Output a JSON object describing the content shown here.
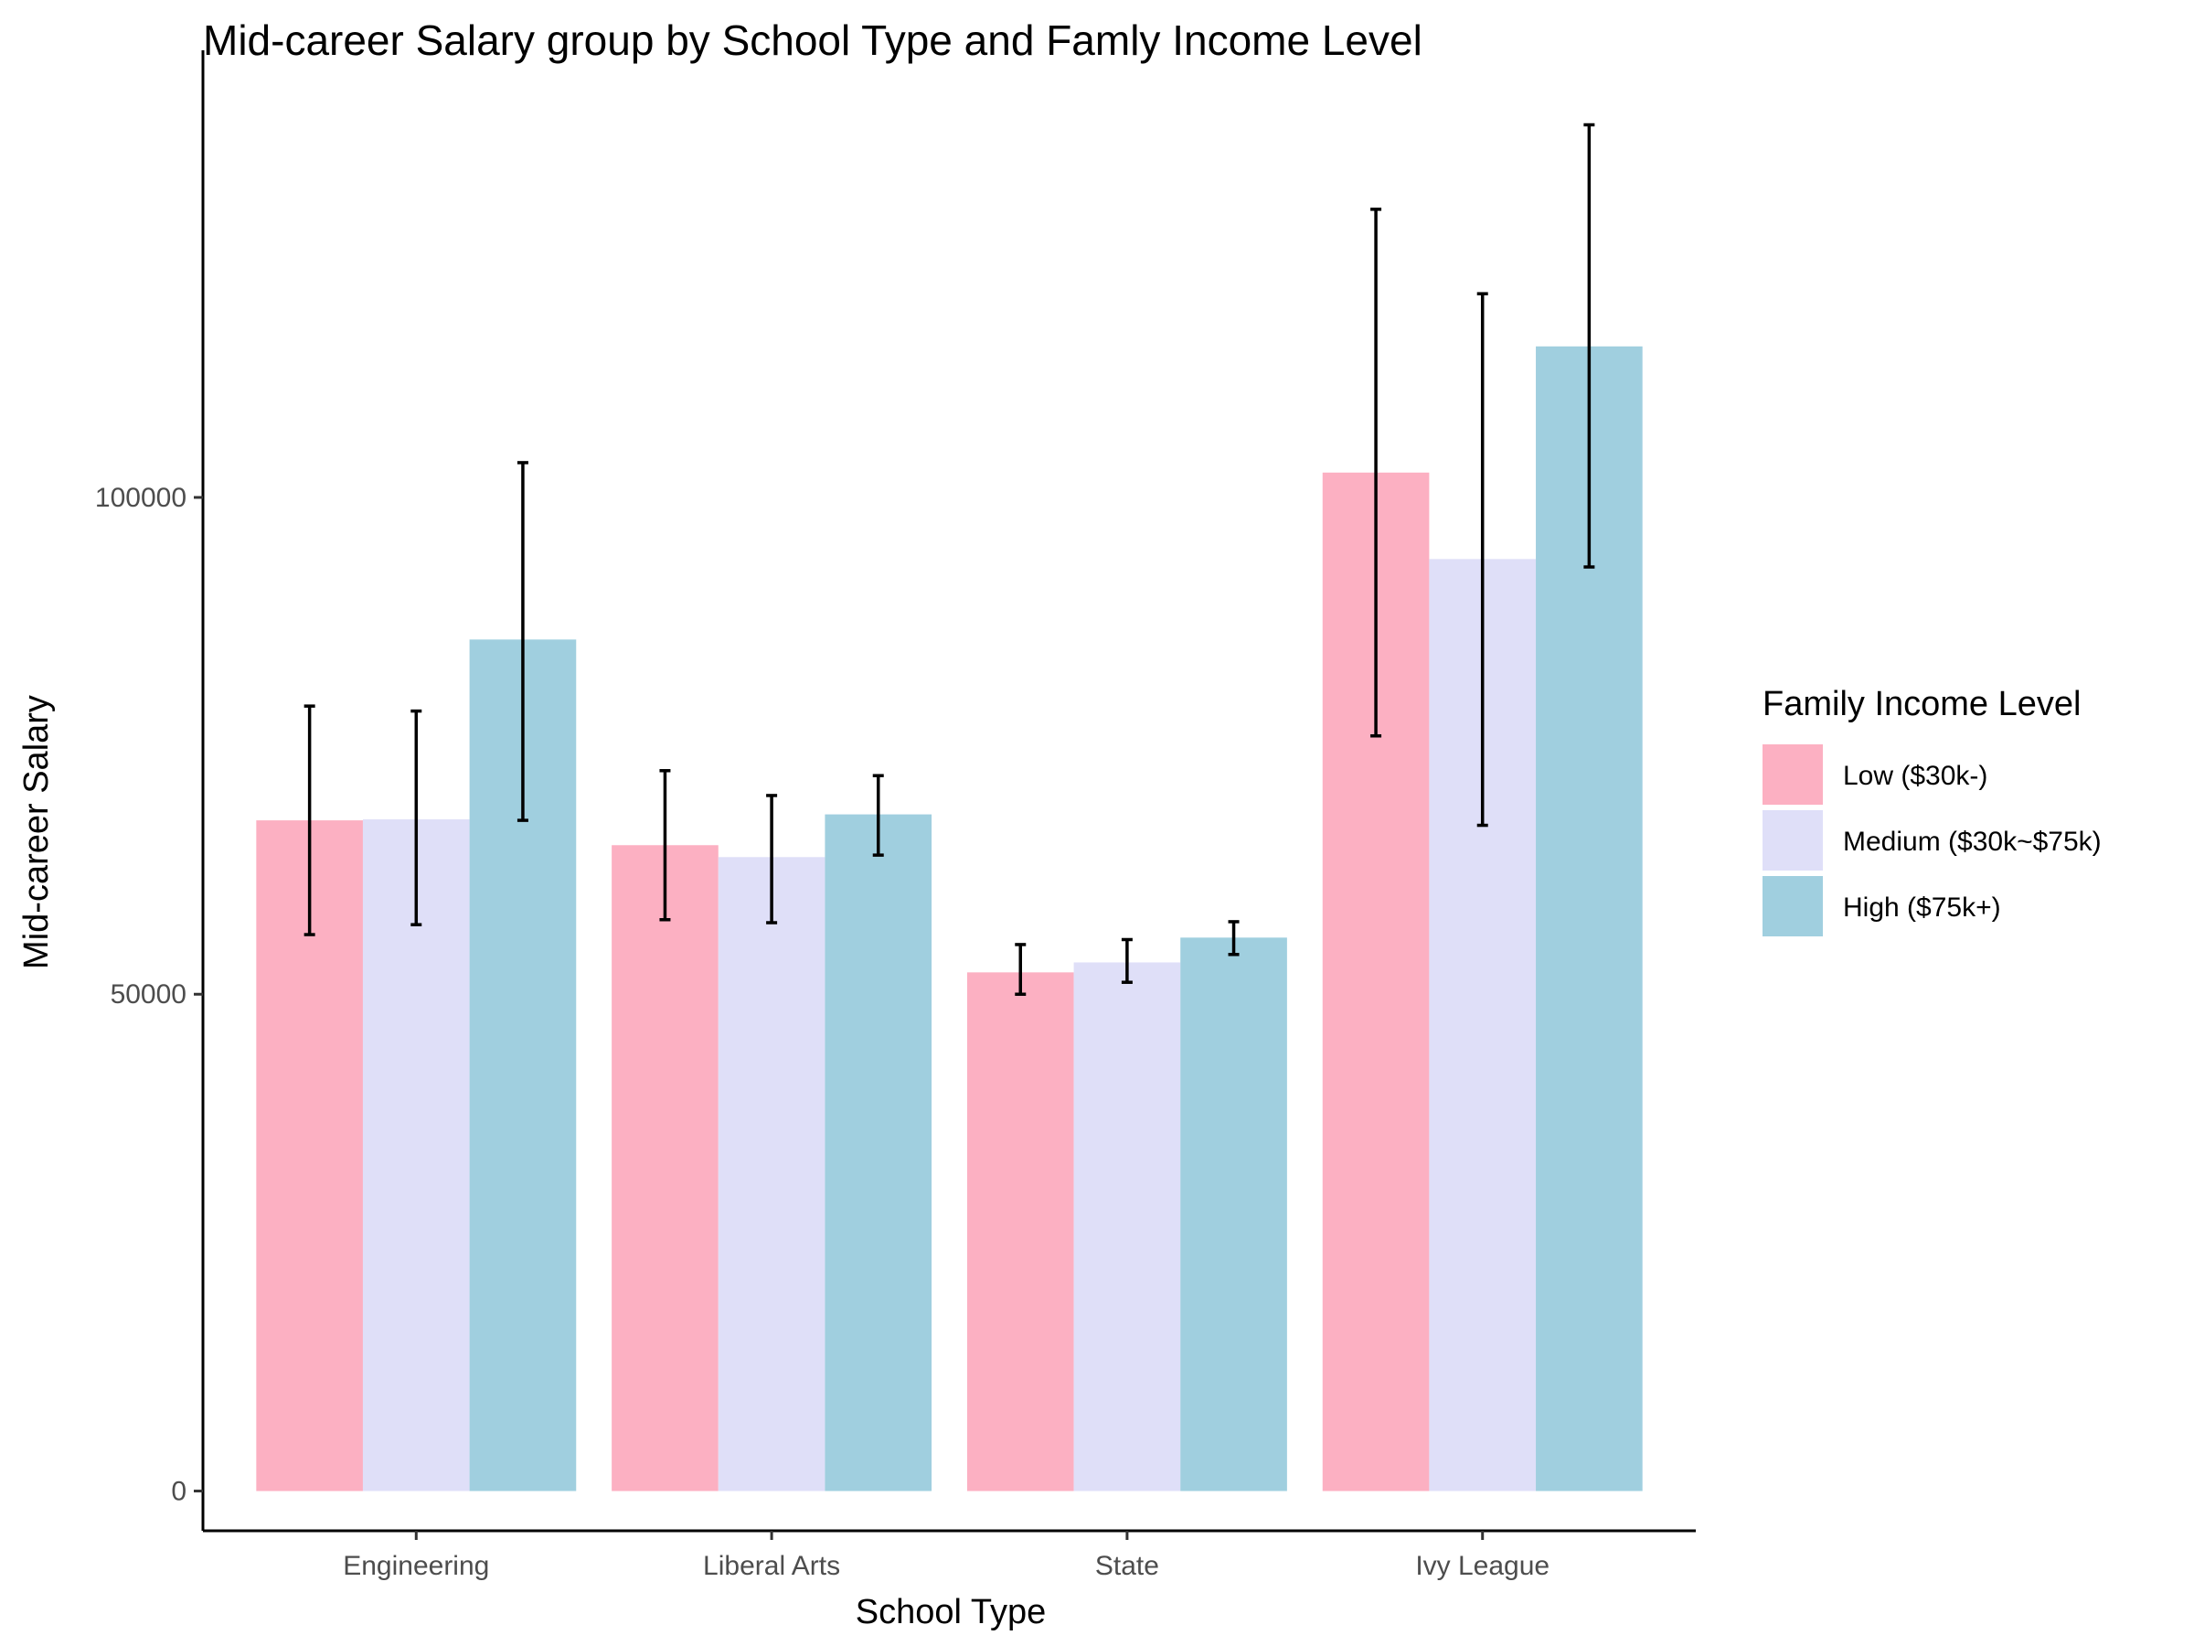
{
  "chart_data": {
    "type": "bar",
    "title": "Mid-career Salary group by School Type and Famly Income Level",
    "xlabel": "School Type",
    "ylabel": "Mid-career Salary",
    "categories": [
      "Engineering",
      "Liberal Arts",
      "State",
      "Ivy League"
    ],
    "ylim": [
      -4000,
      145000
    ],
    "yticks": [
      0,
      50000,
      100000
    ],
    "grid": false,
    "legend": {
      "title": "Family Income Level",
      "placement": "right"
    },
    "series": [
      {
        "name": "Low ($30k-)",
        "color": "#fcb0c2",
        "values": [
          67500,
          65000,
          52200,
          102500
        ],
        "error_low": [
          56000,
          57500,
          50000,
          76000
        ],
        "error_high": [
          79000,
          72500,
          55000,
          129000
        ]
      },
      {
        "name": "Medium ($30k~$75k)",
        "color": "#dfdff8",
        "values": [
          67600,
          63800,
          53200,
          93800
        ],
        "error_low": [
          57000,
          57200,
          51200,
          67000
        ],
        "error_high": [
          78500,
          70000,
          55500,
          120500
        ]
      },
      {
        "name": "High ($75k+)",
        "color": "#a0cfdf",
        "values": [
          85700,
          68100,
          55700,
          115200
        ],
        "error_low": [
          67500,
          64000,
          54000,
          93000
        ],
        "error_high": [
          103500,
          72000,
          57300,
          137500
        ]
      }
    ]
  }
}
